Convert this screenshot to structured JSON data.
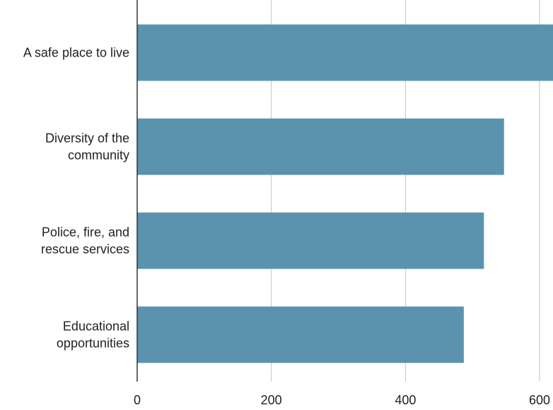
{
  "chart_data": {
    "type": "bar",
    "orientation": "horizontal",
    "categories": [
      [
        "A safe place to live"
      ],
      [
        "Diversity of the",
        "community"
      ],
      [
        "Police, fire, and",
        "rescue services"
      ],
      [
        "Educational",
        "opportunities"
      ]
    ],
    "values": [
      620,
      547,
      517,
      487
    ],
    "xlim": [
      0,
      620
    ],
    "xticks": [
      0,
      200,
      400,
      600
    ],
    "xtick_labels": [
      "0",
      "200",
      "400",
      "600"
    ],
    "grid": "vertical",
    "legend": "none",
    "bar_color": "#5b93af",
    "grid_color": "#cccccc",
    "axis_color": "#333333"
  }
}
